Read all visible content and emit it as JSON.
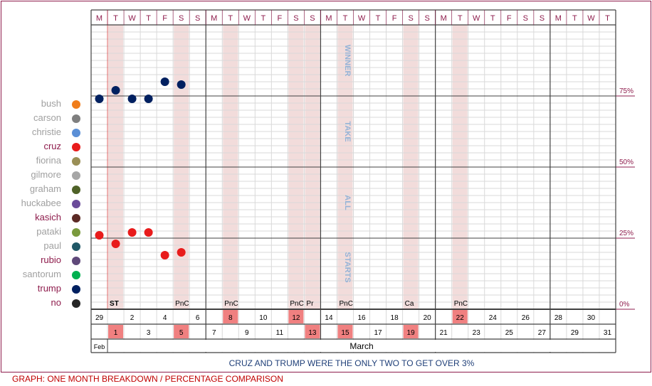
{
  "legend": [
    {
      "name": "bush",
      "color": "#f07d1b",
      "highlight": false
    },
    {
      "name": "carson",
      "color": "#7f7f7f",
      "highlight": false
    },
    {
      "name": "christie",
      "color": "#5b8fd6",
      "highlight": false
    },
    {
      "name": "cruz",
      "color": "#e81b1b",
      "highlight": true
    },
    {
      "name": "fiorina",
      "color": "#9a8f56",
      "highlight": false
    },
    {
      "name": "gilmore",
      "color": "#a6a6a6",
      "highlight": false
    },
    {
      "name": "graham",
      "color": "#4f6228",
      "highlight": false
    },
    {
      "name": "huckabee",
      "color": "#6b4c9a",
      "highlight": false
    },
    {
      "name": "kasich",
      "color": "#5c2a25",
      "highlight": true
    },
    {
      "name": "pataki",
      "color": "#7a9a3d",
      "highlight": false
    },
    {
      "name": "paul",
      "color": "#205867",
      "highlight": false
    },
    {
      "name": "rubio",
      "color": "#5f497a",
      "highlight": true
    },
    {
      "name": "santorum",
      "color": "#00b050",
      "highlight": false
    },
    {
      "name": "trump",
      "color": "#002060",
      "highlight": true
    },
    {
      "name": "no",
      "color": "#262626",
      "highlight": true
    }
  ],
  "day_headers": [
    "M",
    "T",
    "W",
    "T",
    "F",
    "S",
    "S",
    "M",
    "T",
    "W",
    "T",
    "F",
    "S",
    "S",
    "M",
    "T",
    "W",
    "T",
    "F",
    "S",
    "S",
    "M",
    "T",
    "W",
    "T",
    "F",
    "S",
    "S",
    "M",
    "T",
    "W",
    "T"
  ],
  "dates": [
    "29",
    "1",
    "2",
    "3",
    "4",
    "5",
    "6",
    "7",
    "8",
    "9",
    "10",
    "11",
    "12",
    "13",
    "14",
    "15",
    "16",
    "17",
    "18",
    "19",
    "20",
    "21",
    "22",
    "23",
    "24",
    "25",
    "26",
    "27",
    "28",
    "29",
    "30",
    "31"
  ],
  "highlighted_dates": [
    "1",
    "5",
    "8",
    "12",
    "13",
    "15",
    "19",
    "22"
  ],
  "month_labels": {
    "feb": "Feb",
    "march": "March"
  },
  "event_labels": [
    {
      "day": "1",
      "label": "ST"
    },
    {
      "day": "5",
      "label": "PnC"
    },
    {
      "day": "8",
      "label": "PnC"
    },
    {
      "day": "12",
      "label": "PnC"
    },
    {
      "day": "13",
      "label": "Pr"
    },
    {
      "day": "15",
      "label": "PnC"
    },
    {
      "day": "19",
      "label": "Ca"
    },
    {
      "day": "22",
      "label": "PnC"
    }
  ],
  "vertical_text": [
    "WINNER",
    "TAKE",
    "ALL",
    "STARTS"
  ],
  "colors": {
    "band": "#f2dcdb",
    "accent": "#8e1c4c",
    "date_highlight": "#f08080",
    "vertical_text": "#95b3d7",
    "grid": "#d9d9d9"
  },
  "chart_data": {
    "type": "scatter",
    "y_ticks": [
      "0%",
      "25%",
      "50%",
      "75%"
    ],
    "ylim": [
      0,
      100
    ],
    "x": [
      "29",
      "1",
      "2",
      "3",
      "4",
      "5"
    ],
    "series": [
      {
        "name": "cruz",
        "color": "#e81b1b",
        "values": [
          26,
          23,
          27,
          27,
          19,
          20
        ]
      },
      {
        "name": "trump",
        "color": "#002060",
        "values": [
          74,
          77,
          74,
          74,
          80,
          79
        ]
      }
    ]
  },
  "footnote": "CRUZ AND TRUMP WERE THE ONLY TWO TO GET OVER 3%",
  "caption": "GRAPH: ONE MONTH BREAKDOWN / PERCENTAGE COMPARISON"
}
